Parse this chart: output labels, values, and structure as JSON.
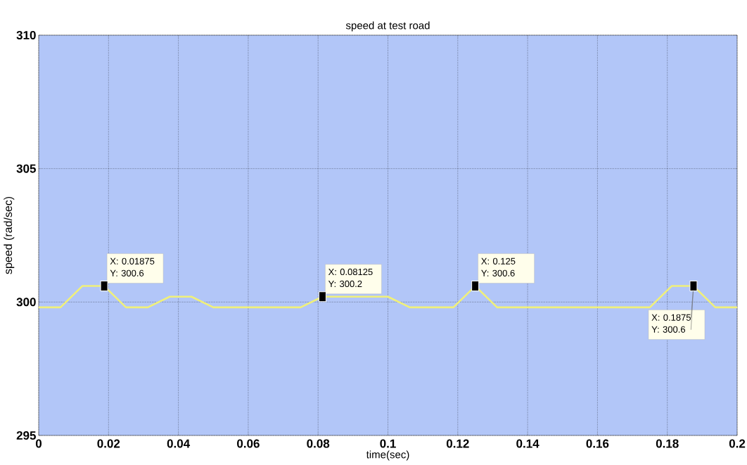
{
  "chart_data": {
    "type": "line",
    "title": "speed at test road",
    "xlabel": "time(sec)",
    "ylabel": "speed (rad/sec)",
    "x": [
      0,
      0.00625,
      0.0125,
      0.01875,
      0.025,
      0.03125,
      0.0375,
      0.04375,
      0.05,
      0.075,
      0.08125,
      0.1,
      0.10625,
      0.11875,
      0.125,
      0.13125,
      0.175,
      0.18125,
      0.1875,
      0.19375,
      0.2
    ],
    "series": [
      {
        "color": "#f0f07a",
        "values": [
          299.8,
          299.8,
          300.6,
          300.6,
          299.8,
          299.8,
          300.2,
          300.2,
          299.8,
          299.8,
          300.2,
          300.2,
          299.8,
          299.8,
          300.6,
          299.8,
          299.8,
          300.6,
          300.6,
          299.8,
          299.8
        ]
      }
    ],
    "xlim": [
      0,
      0.2
    ],
    "ylim": [
      295,
      310
    ],
    "xticks": [
      0,
      0.02,
      0.04,
      0.06,
      0.08,
      0.1,
      0.12,
      0.14,
      0.16,
      0.18,
      0.2
    ],
    "yticks": [
      295,
      300,
      305,
      310
    ],
    "grid": true,
    "marker": "none",
    "line_style": "solid",
    "annotations": [
      {
        "text": "X: 0.01875",
        "x": 0.01875,
        "y": 300.6
      },
      {
        "text": "Y: 300.6",
        "x": 0.01875,
        "y": 300.6
      },
      {
        "text": "X: 0.08125",
        "x": 0.08125,
        "y": 300.2
      },
      {
        "text": "Y: 300.2",
        "x": 0.08125,
        "y": 300.2
      },
      {
        "text": "X: 0.125",
        "x": 0.125,
        "y": 300.6
      },
      {
        "text": "Y: 300.6",
        "x": 0.125,
        "y": 300.6
      },
      {
        "text": "X: 0.1875",
        "x": 0.1875,
        "y": 300.6
      },
      {
        "text": "Y: 300.6",
        "x": 0.1875,
        "y": 300.6
      }
    ]
  }
}
